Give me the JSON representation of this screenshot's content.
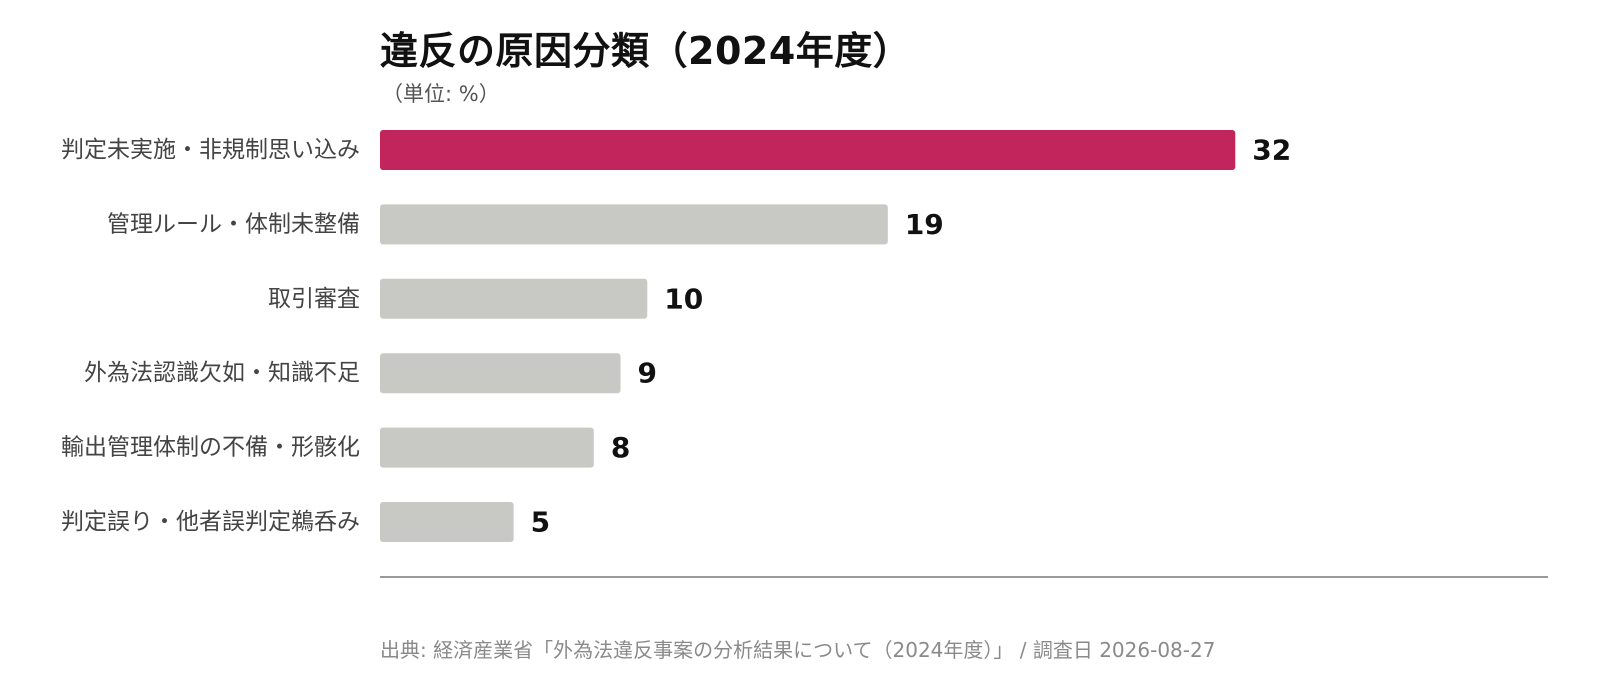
{
  "title": "違反の原因分類（2024年度）",
  "subtitle": "（単位: %）",
  "source": "出典: 経済産業省「外為法違反事案の分析結果について（2024年度）」 / 調査日 2026-08-27",
  "colors": {
    "highlight": "#c2255c",
    "bar": "#c8c8c4",
    "axis": "#999999",
    "value": "#111111",
    "label": "#444444"
  },
  "chart_data": {
    "type": "bar",
    "orientation": "horizontal",
    "unit": "%",
    "categories": [
      "判定未実施・非規制思い込み",
      "管理ルール・体制未整備",
      "取引審査",
      "外為法認識欠如・知識不足",
      "輸出管理体制の不備・形骸化",
      "判定誤り・他者誤判定鵜呑み"
    ],
    "values": [
      32,
      19,
      10,
      9,
      8,
      5
    ],
    "highlight_index": 0,
    "xlim": [
      0,
      43.7
    ],
    "grid": false
  }
}
